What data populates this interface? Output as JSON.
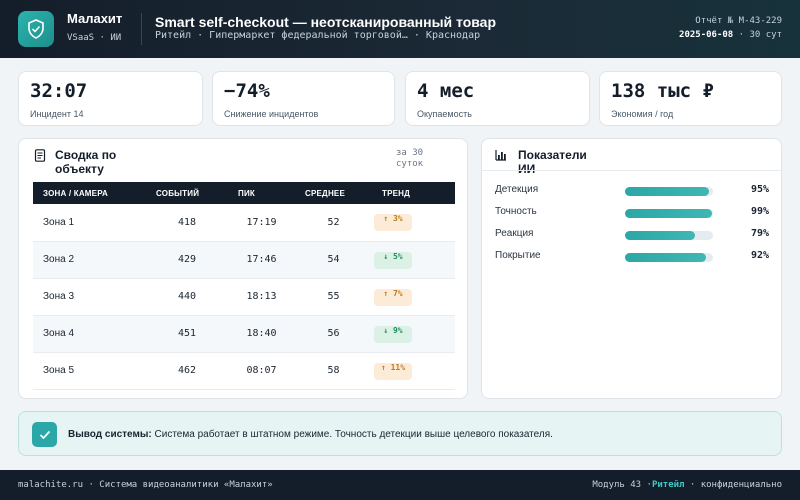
{
  "header": {
    "brand_name": "Малахит",
    "brand_sub": "VSaaS · ИИ",
    "title": "Smart self-checkout — неотсканированный товар",
    "subtitle": "Ритейл · Гипермаркет федеральной торговой… · Краснодар",
    "report_id": "Отчёт № М-43-229",
    "report_date": "2025-06-08",
    "report_period": "· 30 сут",
    "logo_icon": "shield-check-icon"
  },
  "kpis": [
    {
      "value": "32:07",
      "label": "Инцидент 14"
    },
    {
      "value": "−74%",
      "label": "Снижение инцидентов"
    },
    {
      "value": "4 мес",
      "label": "Окупаемость"
    },
    {
      "value": "138 тыс ₽",
      "label": "Экономия / год"
    }
  ],
  "summary": {
    "title": "Сводка по объекту",
    "period": "за 30 суток",
    "icon": "document-icon",
    "columns": [
      "ЗОНА / КАМЕРА",
      "СОБЫТИЙ",
      "ПИК",
      "СРЕДНЕЕ",
      "ТРЕНД"
    ],
    "rows": [
      {
        "zone": "Зона 1",
        "events": "418",
        "peak": "17:19",
        "avg": "52",
        "trend": "↑ 3%",
        "dir": "up"
      },
      {
        "zone": "Зона 2",
        "events": "429",
        "peak": "17:46",
        "avg": "54",
        "trend": "↓ 5%",
        "dir": "down"
      },
      {
        "zone": "Зона 3",
        "events": "440",
        "peak": "18:13",
        "avg": "55",
        "trend": "↑ 7%",
        "dir": "up"
      },
      {
        "zone": "Зона 4",
        "events": "451",
        "peak": "18:40",
        "avg": "56",
        "trend": "↓ 9%",
        "dir": "down"
      },
      {
        "zone": "Зона 5",
        "events": "462",
        "peak": "08:07",
        "avg": "58",
        "trend": "↑ 11%",
        "dir": "up"
      }
    ]
  },
  "ai_metrics": {
    "title": "Показатели ИИ",
    "icon": "bar-chart-icon",
    "items": [
      {
        "label": "Детекция",
        "value": "95%",
        "fill": 0.95
      },
      {
        "label": "Точность",
        "value": "99%",
        "fill": 0.99
      },
      {
        "label": "Реакция",
        "value": "79%",
        "fill": 0.79
      },
      {
        "label": "Покрытие",
        "value": "92%",
        "fill": 0.92
      }
    ]
  },
  "conclusion": {
    "label": "Вывод системы:",
    "text": "Система работает в штатном режиме. Точность детекции выше целевого показателя.",
    "icon": "check-icon"
  },
  "footer": {
    "left": "malachite.ru · Система видеоаналитики «Малахит»",
    "module": "Модуль 43 ·",
    "segment": "Ритейл",
    "confidential": "· конфиденциально"
  },
  "colors": {
    "accent": "#2aa7a6",
    "dark": "#141e2a",
    "trend_up": "#c07a1b",
    "trend_down": "#1f8c5a"
  }
}
